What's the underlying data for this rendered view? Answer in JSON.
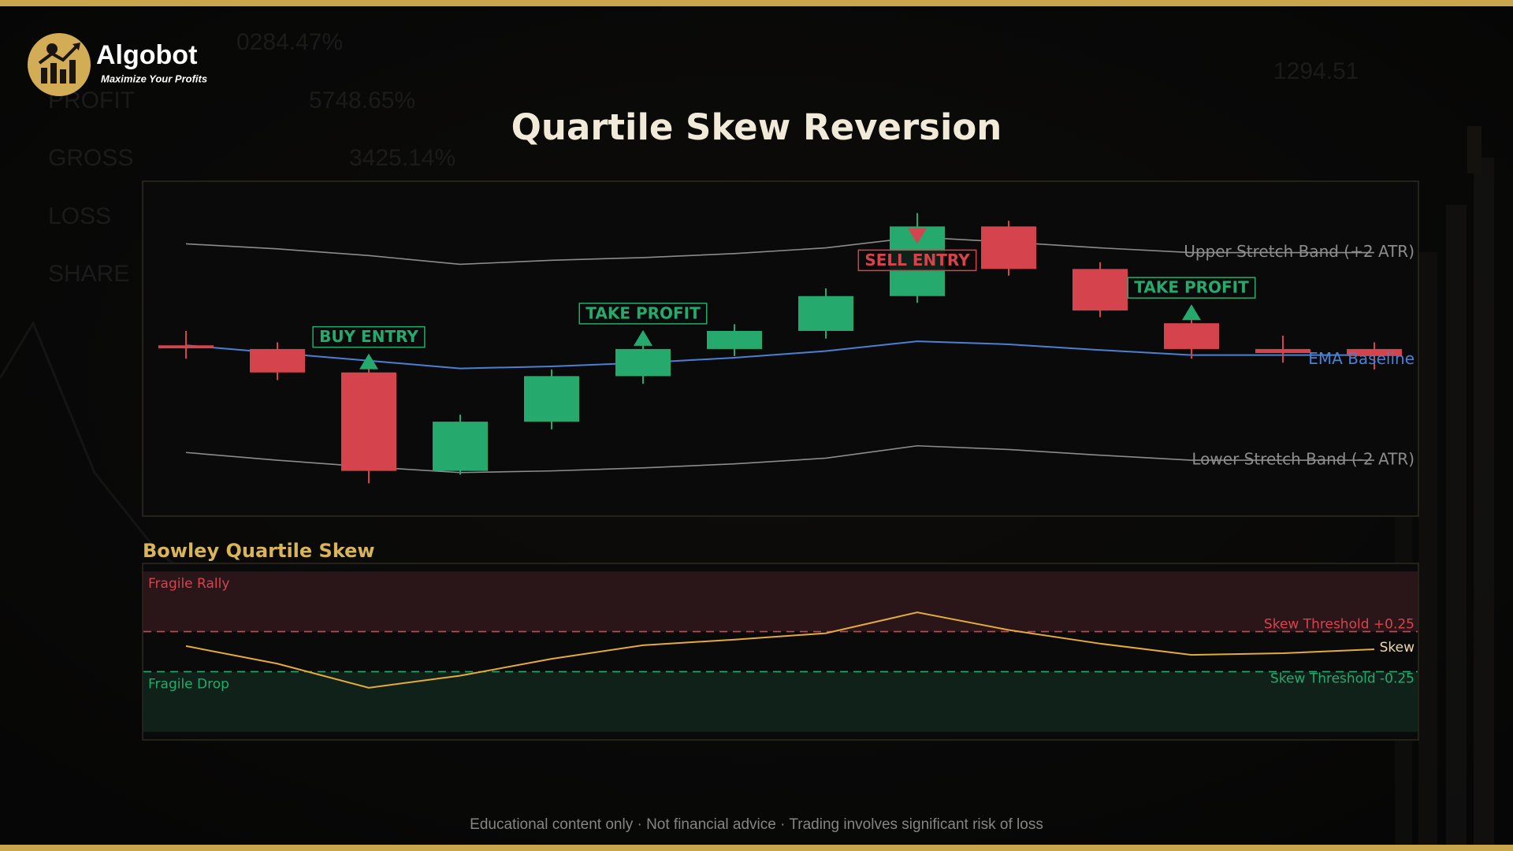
{
  "brand": {
    "name": "Algobot",
    "tagline": "Maximize Your Profits"
  },
  "background_text": [
    "0284.47%",
    "PROFIT",
    "5748.65%",
    "GROSS",
    "3425.14%",
    "LOSS",
    "SHARE",
    "1294.51"
  ],
  "chart_data": [
    {
      "type": "candlestick",
      "title": "Quartile Skew Reversion",
      "open": [
        51.0,
        49.9,
        42.9,
        13.5,
        28.2,
        41.8,
        49.9,
        55.3,
        65.7,
        86.5,
        73.8,
        57.6,
        49.9,
        49.9
      ],
      "high": [
        55.3,
        51.9,
        45.2,
        30.3,
        43.8,
        52.7,
        57.3,
        68.0,
        90.5,
        88.2,
        75.8,
        59.7,
        53.9,
        51.9
      ],
      "low": [
        47.0,
        40.6,
        9.8,
        12.4,
        25.9,
        39.5,
        47.8,
        53.0,
        63.7,
        71.8,
        59.4,
        47.0,
        45.8,
        43.8
      ],
      "close": [
        50.1,
        42.9,
        13.5,
        28.2,
        41.8,
        49.9,
        55.3,
        65.7,
        86.5,
        73.8,
        61.4,
        49.9,
        48.7,
        47.8
      ],
      "up_color": "#26a96c",
      "down_color": "#d5444d",
      "ylim": [
        0,
        100
      ],
      "series": [
        {
          "name": "Upper Stretch Band (+2 ATR)",
          "color": "#8c8c8c",
          "values": [
            81.3,
            79.8,
            77.8,
            75.2,
            76.4,
            77.2,
            78.4,
            80.1,
            83.3,
            81.8,
            80.1,
            78.7,
            78.7,
            78.7
          ]
        },
        {
          "name": "EMA Baseline",
          "color": "#4a80d4",
          "values": [
            51.0,
            48.7,
            46.4,
            44.1,
            44.7,
            45.8,
            47.3,
            49.3,
            52.2,
            51.3,
            49.6,
            48.1,
            48.1,
            48.1
          ]
        },
        {
          "name": "Lower Stretch Band (-2 ATR)",
          "color": "#8c8c8c",
          "values": [
            19.0,
            16.7,
            14.7,
            13.0,
            13.5,
            14.4,
            15.6,
            17.3,
            21.0,
            19.9,
            18.2,
            16.7,
            16.7,
            16.7
          ]
        }
      ],
      "signals": [
        null,
        null,
        "BUY ENTRY",
        null,
        null,
        "TAKE PROFIT",
        null,
        null,
        "SELL ENTRY",
        null,
        null,
        "TAKE PROFIT",
        null,
        null
      ],
      "signal_arrows": [
        null,
        null,
        "up",
        null,
        null,
        "up",
        null,
        null,
        "down",
        null,
        null,
        "up",
        null,
        null
      ],
      "signal_colors": [
        null,
        null,
        "#26a96c",
        null,
        null,
        "#26a96c",
        null,
        null,
        "#d5444d",
        null,
        null,
        "#26a96c",
        null,
        null
      ]
    },
    {
      "type": "line",
      "title": "Bowley Quartile Skew",
      "ylim": [
        -1.1,
        1.1
      ],
      "series": [
        {
          "name": "Skew",
          "color": "#e3ab3c",
          "values": [
            0.07,
            -0.15,
            -0.45,
            -0.3,
            -0.09,
            0.08,
            0.15,
            0.23,
            0.49,
            0.27,
            0.1,
            -0.04,
            -0.02,
            0.03
          ]
        }
      ],
      "thresholds": [
        {
          "value": 0.25,
          "label": "Skew Threshold +0.25",
          "color": "#d5444d"
        },
        {
          "value": -0.25,
          "label": "Skew Threshold -0.25",
          "color": "#26a96c"
        }
      ],
      "zones": [
        {
          "label": "Fragile Rally",
          "from": 0.25,
          "to": 1,
          "color": "#2a1519",
          "text_color": "#d5444d"
        },
        {
          "label": "Fragile Drop",
          "from": -1,
          "to": -0.25,
          "color": "#10211a",
          "text_color": "#26a96c"
        }
      ]
    }
  ],
  "footer": "Educational content only · Not financial advice · Trading involves significant risk of loss"
}
